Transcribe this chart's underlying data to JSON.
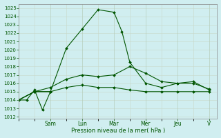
{
  "bg_color": "#d0eef0",
  "grid_color_minor": "#c8d8c8",
  "grid_color_major": "#b0c8b0",
  "line_color": "#005500",
  "ylim_min": 1012,
  "ylim_max": 1025.5,
  "yticks": [
    1012,
    1013,
    1014,
    1015,
    1016,
    1017,
    1018,
    1019,
    1020,
    1021,
    1022,
    1023,
    1024,
    1025
  ],
  "xlabel": "Pression niveau de la mer( hPa )",
  "day_labels": [
    "Sam",
    "Lun",
    "Mar",
    "Mer",
    "Jeu",
    "V"
  ],
  "day_positions": [
    2,
    4,
    6,
    8,
    10,
    12
  ],
  "line1_x": [
    0,
    1,
    2,
    3,
    4,
    5,
    6,
    6.5,
    7,
    8,
    9,
    10,
    11,
    12
  ],
  "line1_y": [
    1014.0,
    1015.0,
    1015.0,
    1020.2,
    1022.5,
    1024.8,
    1024.5,
    1022.2,
    1018.5,
    1016.0,
    1015.5,
    1016.0,
    1016.2,
    1015.2
  ],
  "line2_x": [
    0,
    1,
    2,
    3,
    4,
    5,
    6,
    7,
    8,
    9,
    10,
    11,
    12
  ],
  "line2_y": [
    1014.0,
    1015.0,
    1015.5,
    1016.5,
    1017.0,
    1016.8,
    1017.0,
    1018.0,
    1017.2,
    1016.2,
    1016.0,
    1016.0,
    1015.3
  ],
  "line3_x": [
    0,
    1,
    2,
    3,
    4,
    5,
    6,
    7,
    8,
    9,
    10,
    11,
    12
  ],
  "line3_y": [
    1014.0,
    1015.0,
    1015.0,
    1015.5,
    1015.8,
    1015.5,
    1015.5,
    1015.2,
    1015.0,
    1015.0,
    1015.0,
    1015.0,
    1015.0
  ],
  "line_extra_x": [
    0,
    0.5,
    1,
    1.5,
    2
  ],
  "line_extra_y": [
    1014.0,
    1014.0,
    1015.2,
    1012.8,
    1015.0
  ],
  "xlim_min": 0,
  "xlim_max": 12.5
}
